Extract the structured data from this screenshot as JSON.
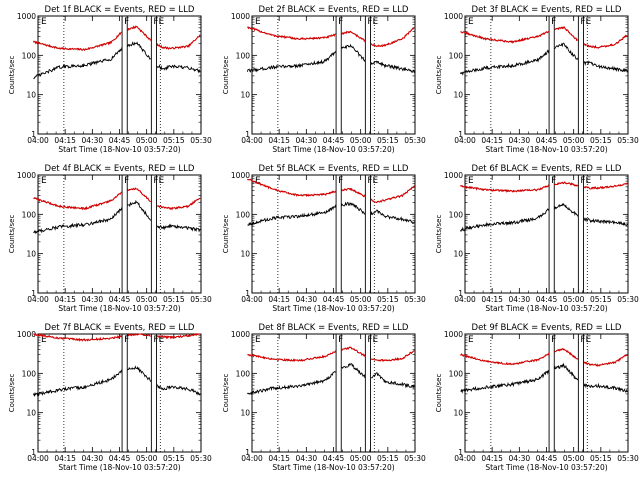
{
  "chart_data": [
    {
      "type": "line",
      "title": "Det 1f BLACK = Events, RED = LLD",
      "xlabel": "Start Time (18-Nov-10 03:57:20)",
      "ylabel": "Counts/sec",
      "x_ticks": [
        "04:00",
        "04:15",
        "04:30",
        "04:45",
        "05:00",
        "05:15",
        "05:30"
      ],
      "y_ticks": [
        "1",
        "10",
        "100",
        "1000"
      ],
      "ylim": [
        1,
        1000
      ],
      "yscale": "log",
      "region_labels": [
        "E",
        "F",
        "F",
        "E"
      ],
      "series": [
        {
          "color": "#d00000",
          "minutes": [
            0,
            15,
            30,
            45,
            52,
            60,
            70,
            75,
            80,
            90,
            97
          ],
          "values": [
            220,
            150,
            140,
            210,
            420,
            540,
            200,
            160,
            150,
            170,
            330
          ]
        },
        {
          "color": "#000000",
          "minutes": [
            0,
            15,
            30,
            45,
            52,
            60,
            70,
            75,
            80,
            90,
            97
          ],
          "values": [
            27,
            50,
            56,
            80,
            160,
            210,
            62,
            45,
            52,
            48,
            40
          ]
        }
      ]
    },
    {
      "type": "line",
      "title": "Det 2f BLACK = Events, RED = LLD",
      "xlabel": "Start Time (18-Nov-10 03:57:20)",
      "ylabel": "Counts/sec",
      "x_ticks": [
        "04:00",
        "04:15",
        "04:30",
        "04:45",
        "05:00",
        "05:15",
        "05:30"
      ],
      "y_ticks": [
        "1",
        "10",
        "100",
        "1000"
      ],
      "ylim": [
        1,
        1000
      ],
      "yscale": "log",
      "region_labels": [
        "E",
        "F",
        "F",
        "E"
      ],
      "series": [
        {
          "color": "#d00000",
          "minutes": [
            0,
            15,
            30,
            45,
            52,
            60,
            70,
            75,
            80,
            90,
            97
          ],
          "values": [
            520,
            320,
            260,
            280,
            340,
            400,
            210,
            170,
            180,
            260,
            520
          ]
        },
        {
          "color": "#000000",
          "minutes": [
            0,
            15,
            30,
            45,
            52,
            60,
            70,
            75,
            80,
            90,
            97
          ],
          "values": [
            40,
            50,
            55,
            70,
            130,
            180,
            60,
            70,
            55,
            45,
            38
          ]
        }
      ]
    },
    {
      "type": "line",
      "title": "Det 3f BLACK = Events, RED = LLD",
      "xlabel": "Start Time (18-Nov-10 03:57:20)",
      "ylabel": "Counts/sec",
      "x_ticks": [
        "04:00",
        "04:15",
        "04:30",
        "04:45",
        "05:00",
        "05:15",
        "05:30"
      ],
      "y_ticks": [
        "1",
        "10",
        "100",
        "1000"
      ],
      "ylim": [
        1,
        1000
      ],
      "yscale": "log",
      "region_labels": [
        "E",
        "F",
        "F",
        "E"
      ],
      "series": [
        {
          "color": "#d00000",
          "minutes": [
            0,
            15,
            30,
            45,
            52,
            60,
            70,
            75,
            80,
            90,
            97
          ],
          "values": [
            400,
            260,
            220,
            300,
            420,
            520,
            200,
            170,
            160,
            190,
            330
          ]
        },
        {
          "color": "#000000",
          "minutes": [
            0,
            15,
            30,
            45,
            52,
            60,
            70,
            75,
            80,
            90,
            97
          ],
          "values": [
            35,
            48,
            55,
            75,
            140,
            190,
            62,
            65,
            52,
            45,
            40
          ]
        }
      ]
    },
    {
      "type": "line",
      "title": "Det 4f BLACK = Events, RED = LLD",
      "xlabel": "Start Time (18-Nov-10 03:57:20)",
      "ylabel": "Counts/sec",
      "x_ticks": [
        "04:00",
        "04:15",
        "04:30",
        "04:45",
        "05:00",
        "05:15",
        "05:30"
      ],
      "y_ticks": [
        "1",
        "10",
        "100",
        "1000"
      ],
      "ylim": [
        1,
        1000
      ],
      "yscale": "log",
      "region_labels": [
        "E",
        "F",
        "F",
        "E"
      ],
      "series": [
        {
          "color": "#d00000",
          "minutes": [
            0,
            15,
            30,
            45,
            52,
            60,
            70,
            75,
            80,
            90,
            97
          ],
          "values": [
            260,
            160,
            140,
            220,
            380,
            450,
            180,
            150,
            140,
            160,
            270
          ]
        },
        {
          "color": "#000000",
          "minutes": [
            0,
            15,
            30,
            45,
            52,
            60,
            70,
            75,
            80,
            90,
            97
          ],
          "values": [
            35,
            48,
            55,
            75,
            150,
            210,
            55,
            45,
            50,
            45,
            40
          ]
        }
      ]
    },
    {
      "type": "line",
      "title": "Det 5f BLACK = Events, RED = LLD",
      "xlabel": "Start Time (18-Nov-10 03:57:20)",
      "ylabel": "Counts/sec",
      "x_ticks": [
        "04:00",
        "04:15",
        "04:30",
        "04:45",
        "05:00",
        "05:15",
        "05:30"
      ],
      "y_ticks": [
        "1",
        "10",
        "100",
        "1000"
      ],
      "ylim": [
        1,
        1000
      ],
      "yscale": "log",
      "region_labels": [
        "E",
        "F",
        "F",
        "E"
      ],
      "series": [
        {
          "color": "#d00000",
          "minutes": [
            0,
            15,
            30,
            45,
            52,
            60,
            70,
            75,
            80,
            90,
            97
          ],
          "values": [
            800,
            430,
            300,
            320,
            400,
            440,
            260,
            200,
            230,
            300,
            520
          ]
        },
        {
          "color": "#000000",
          "minutes": [
            0,
            15,
            30,
            45,
            52,
            60,
            70,
            75,
            80,
            90,
            97
          ],
          "values": [
            55,
            80,
            90,
            110,
            160,
            190,
            95,
            120,
            90,
            75,
            62
          ]
        }
      ]
    },
    {
      "type": "line",
      "title": "Det 6f BLACK = Events, RED = LLD",
      "xlabel": "Start Time (18-Nov-10 03:57:20)",
      "ylabel": "Counts/sec",
      "x_ticks": [
        "04:00",
        "04:15",
        "04:30",
        "04:45",
        "05:00",
        "05:15",
        "05:30"
      ],
      "y_ticks": [
        "1",
        "10",
        "100",
        "1000"
      ],
      "ylim": [
        1,
        1000
      ],
      "yscale": "log",
      "region_labels": [
        "E",
        "F",
        "F",
        "E"
      ],
      "series": [
        {
          "color": "#d00000",
          "minutes": [
            0,
            15,
            30,
            45,
            52,
            60,
            70,
            75,
            80,
            90,
            97
          ],
          "values": [
            520,
            420,
            390,
            420,
            550,
            640,
            520,
            460,
            470,
            520,
            600
          ]
        },
        {
          "color": "#000000",
          "minutes": [
            0,
            15,
            30,
            45,
            52,
            60,
            70,
            75,
            80,
            90,
            97
          ],
          "values": [
            40,
            55,
            60,
            80,
            140,
            170,
            80,
            70,
            68,
            62,
            55
          ]
        }
      ]
    },
    {
      "type": "line",
      "title": "Det 7f BLACK = Events, RED = LLD",
      "xlabel": "Start Time (18-Nov-10 03:57:20)",
      "ylabel": "Counts/sec",
      "x_ticks": [
        "04:00",
        "04:15",
        "04:30",
        "04:45",
        "05:00",
        "05:15",
        "05:30"
      ],
      "y_ticks": [
        "1",
        "10",
        "100",
        "1000"
      ],
      "ylim": [
        1,
        1000
      ],
      "yscale": "log",
      "region_labels": [
        "E",
        "F",
        "F",
        "E"
      ],
      "series": [
        {
          "color": "#d00000",
          "minutes": [
            0,
            15,
            30,
            45,
            52,
            60,
            70,
            75,
            80,
            90,
            97
          ],
          "values": [
            1000,
            780,
            700,
            780,
            900,
            1000,
            900,
            850,
            820,
            900,
            1000
          ]
        },
        {
          "color": "#000000",
          "minutes": [
            0,
            15,
            30,
            45,
            52,
            60,
            70,
            75,
            80,
            90,
            97
          ],
          "values": [
            28,
            38,
            45,
            70,
            120,
            140,
            55,
            40,
            45,
            40,
            30
          ]
        }
      ]
    },
    {
      "type": "line",
      "title": "Det 8f BLACK = Events, RED = LLD",
      "xlabel": "Start Time (18-Nov-10 03:57:20)",
      "ylabel": "Counts/sec",
      "x_ticks": [
        "04:00",
        "04:15",
        "04:30",
        "04:45",
        "05:00",
        "05:15",
        "05:30"
      ],
      "y_ticks": [
        "1",
        "10",
        "100",
        "1000"
      ],
      "ylim": [
        1,
        1000
      ],
      "yscale": "log",
      "region_labels": [
        "E",
        "F",
        "F",
        "E"
      ],
      "series": [
        {
          "color": "#d00000",
          "minutes": [
            0,
            15,
            30,
            45,
            52,
            60,
            70,
            75,
            80,
            90,
            97
          ],
          "values": [
            300,
            230,
            210,
            270,
            380,
            450,
            250,
            220,
            210,
            240,
            380
          ]
        },
        {
          "color": "#000000",
          "minutes": [
            0,
            15,
            30,
            45,
            52,
            60,
            70,
            75,
            80,
            90,
            97
          ],
          "values": [
            30,
            42,
            48,
            65,
            120,
            170,
            70,
            100,
            62,
            52,
            45
          ]
        }
      ]
    },
    {
      "type": "line",
      "title": "Det 9f BLACK = Events, RED = LLD",
      "xlabel": "Start Time (18-Nov-10 03:57:20)",
      "ylabel": "Counts/sec",
      "x_ticks": [
        "04:00",
        "04:15",
        "04:30",
        "04:45",
        "05:00",
        "05:15",
        "05:30"
      ],
      "y_ticks": [
        "1",
        "10",
        "100",
        "1000"
      ],
      "ylim": [
        1,
        1000
      ],
      "yscale": "log",
      "region_labels": [
        "E",
        "F",
        "F",
        "E"
      ],
      "series": [
        {
          "color": "#d00000",
          "minutes": [
            0,
            15,
            30,
            45,
            52,
            60,
            70,
            75,
            80,
            90,
            97
          ],
          "values": [
            300,
            200,
            170,
            220,
            330,
            420,
            200,
            170,
            160,
            190,
            300
          ]
        },
        {
          "color": "#000000",
          "minutes": [
            0,
            15,
            30,
            45,
            52,
            60,
            70,
            75,
            80,
            90,
            97
          ],
          "values": [
            35,
            45,
            52,
            70,
            120,
            160,
            55,
            45,
            48,
            42,
            35
          ]
        }
      ]
    }
  ]
}
